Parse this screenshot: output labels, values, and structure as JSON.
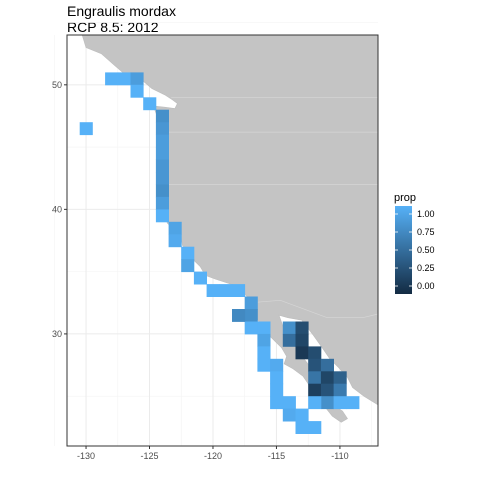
{
  "chart_data": {
    "type": "heatmap",
    "title_line1": "Engraulis mordax",
    "title_line2": "RCP 8.5: 2012",
    "xlim": [
      -131.5,
      -107
    ],
    "ylim": [
      21,
      54
    ],
    "x_ticks": [
      -130,
      -125,
      -120,
      -115,
      -110
    ],
    "y_ticks": [
      30,
      40,
      50
    ],
    "grid": "major-minor",
    "legend_placement": "right",
    "legend": {
      "title": "prop",
      "breaks": [
        1.0,
        0.75,
        0.5,
        0.25,
        0.0
      ],
      "labels": [
        "1.00",
        "0.75",
        "0.50",
        "0.25",
        "0.00"
      ],
      "colors": [
        "#56B1F7",
        "#3F88C2",
        "#2A6291",
        "#173D62",
        "#132B43"
      ]
    },
    "cell_size_deg": 1,
    "cells": [
      [
        -128,
        50.5,
        1
      ],
      [
        -127,
        50.5,
        1
      ],
      [
        -126,
        50.5,
        0.85
      ],
      [
        -126,
        49.5,
        1
      ],
      [
        -125,
        48.5,
        1
      ],
      [
        -124,
        47.5,
        0.75
      ],
      [
        -124,
        46.5,
        0.8
      ],
      [
        -124,
        45.5,
        0.85
      ],
      [
        -124,
        44.5,
        0.85
      ],
      [
        -124,
        43.5,
        0.8
      ],
      [
        -124,
        42.5,
        0.8
      ],
      [
        -124,
        41.5,
        0.75
      ],
      [
        -124,
        40.5,
        0.85
      ],
      [
        -124,
        39.5,
        1
      ],
      [
        -123,
        38.5,
        0.9
      ],
      [
        -123,
        37.5,
        0.95
      ],
      [
        -122,
        36.5,
        1
      ],
      [
        -122,
        35.5,
        0.9
      ],
      [
        -121,
        34.5,
        1
      ],
      [
        -120,
        33.5,
        1
      ],
      [
        -119,
        33.5,
        1
      ],
      [
        -118,
        33.5,
        1
      ],
      [
        -117,
        32.5,
        0.85
      ],
      [
        -117,
        31.5,
        0.75
      ],
      [
        -117,
        30.5,
        1
      ],
      [
        -116,
        30.5,
        1
      ],
      [
        -116,
        29.5,
        0.9
      ],
      [
        -116,
        28.5,
        1
      ],
      [
        -116,
        27.5,
        1
      ],
      [
        -115,
        27.5,
        0.95
      ],
      [
        -115,
        26.5,
        1
      ],
      [
        -115,
        25.5,
        1
      ],
      [
        -115,
        24.5,
        1
      ],
      [
        -114,
        24.5,
        1
      ],
      [
        -114,
        23.5,
        0.95
      ],
      [
        -113,
        23.5,
        1
      ],
      [
        -113,
        22.5,
        1
      ],
      [
        -112,
        22.5,
        1
      ],
      [
        -114,
        30.5,
        0.75
      ],
      [
        -113,
        30.5,
        0.25
      ],
      [
        -114,
        29.5,
        0.5
      ],
      [
        -113,
        29.5,
        0.2
      ],
      [
        -113,
        28.5,
        0.1
      ],
      [
        -112,
        28.5,
        0.25
      ],
      [
        -112,
        27.5,
        0.3
      ],
      [
        -111,
        27.5,
        0.5
      ],
      [
        -112,
        26.5,
        0.55
      ],
      [
        -111,
        26.5,
        0.2
      ],
      [
        -110,
        26.5,
        0.4
      ],
      [
        -112,
        25.5,
        0.15
      ],
      [
        -111,
        25.5,
        0.3
      ],
      [
        -110,
        25.5,
        0.6
      ],
      [
        -111,
        24.5,
        0.75
      ],
      [
        -110,
        24.5,
        1
      ],
      [
        -109,
        24.5,
        1
      ],
      [
        -112,
        24.5,
        1
      ],
      [
        -130,
        46.5,
        1
      ],
      [
        -118,
        31.5,
        0.7
      ]
    ],
    "colors": {
      "land": "#c4c4c4",
      "ocean": "#ffffff",
      "grid": "#ebebeb",
      "border": "#333333"
    }
  }
}
